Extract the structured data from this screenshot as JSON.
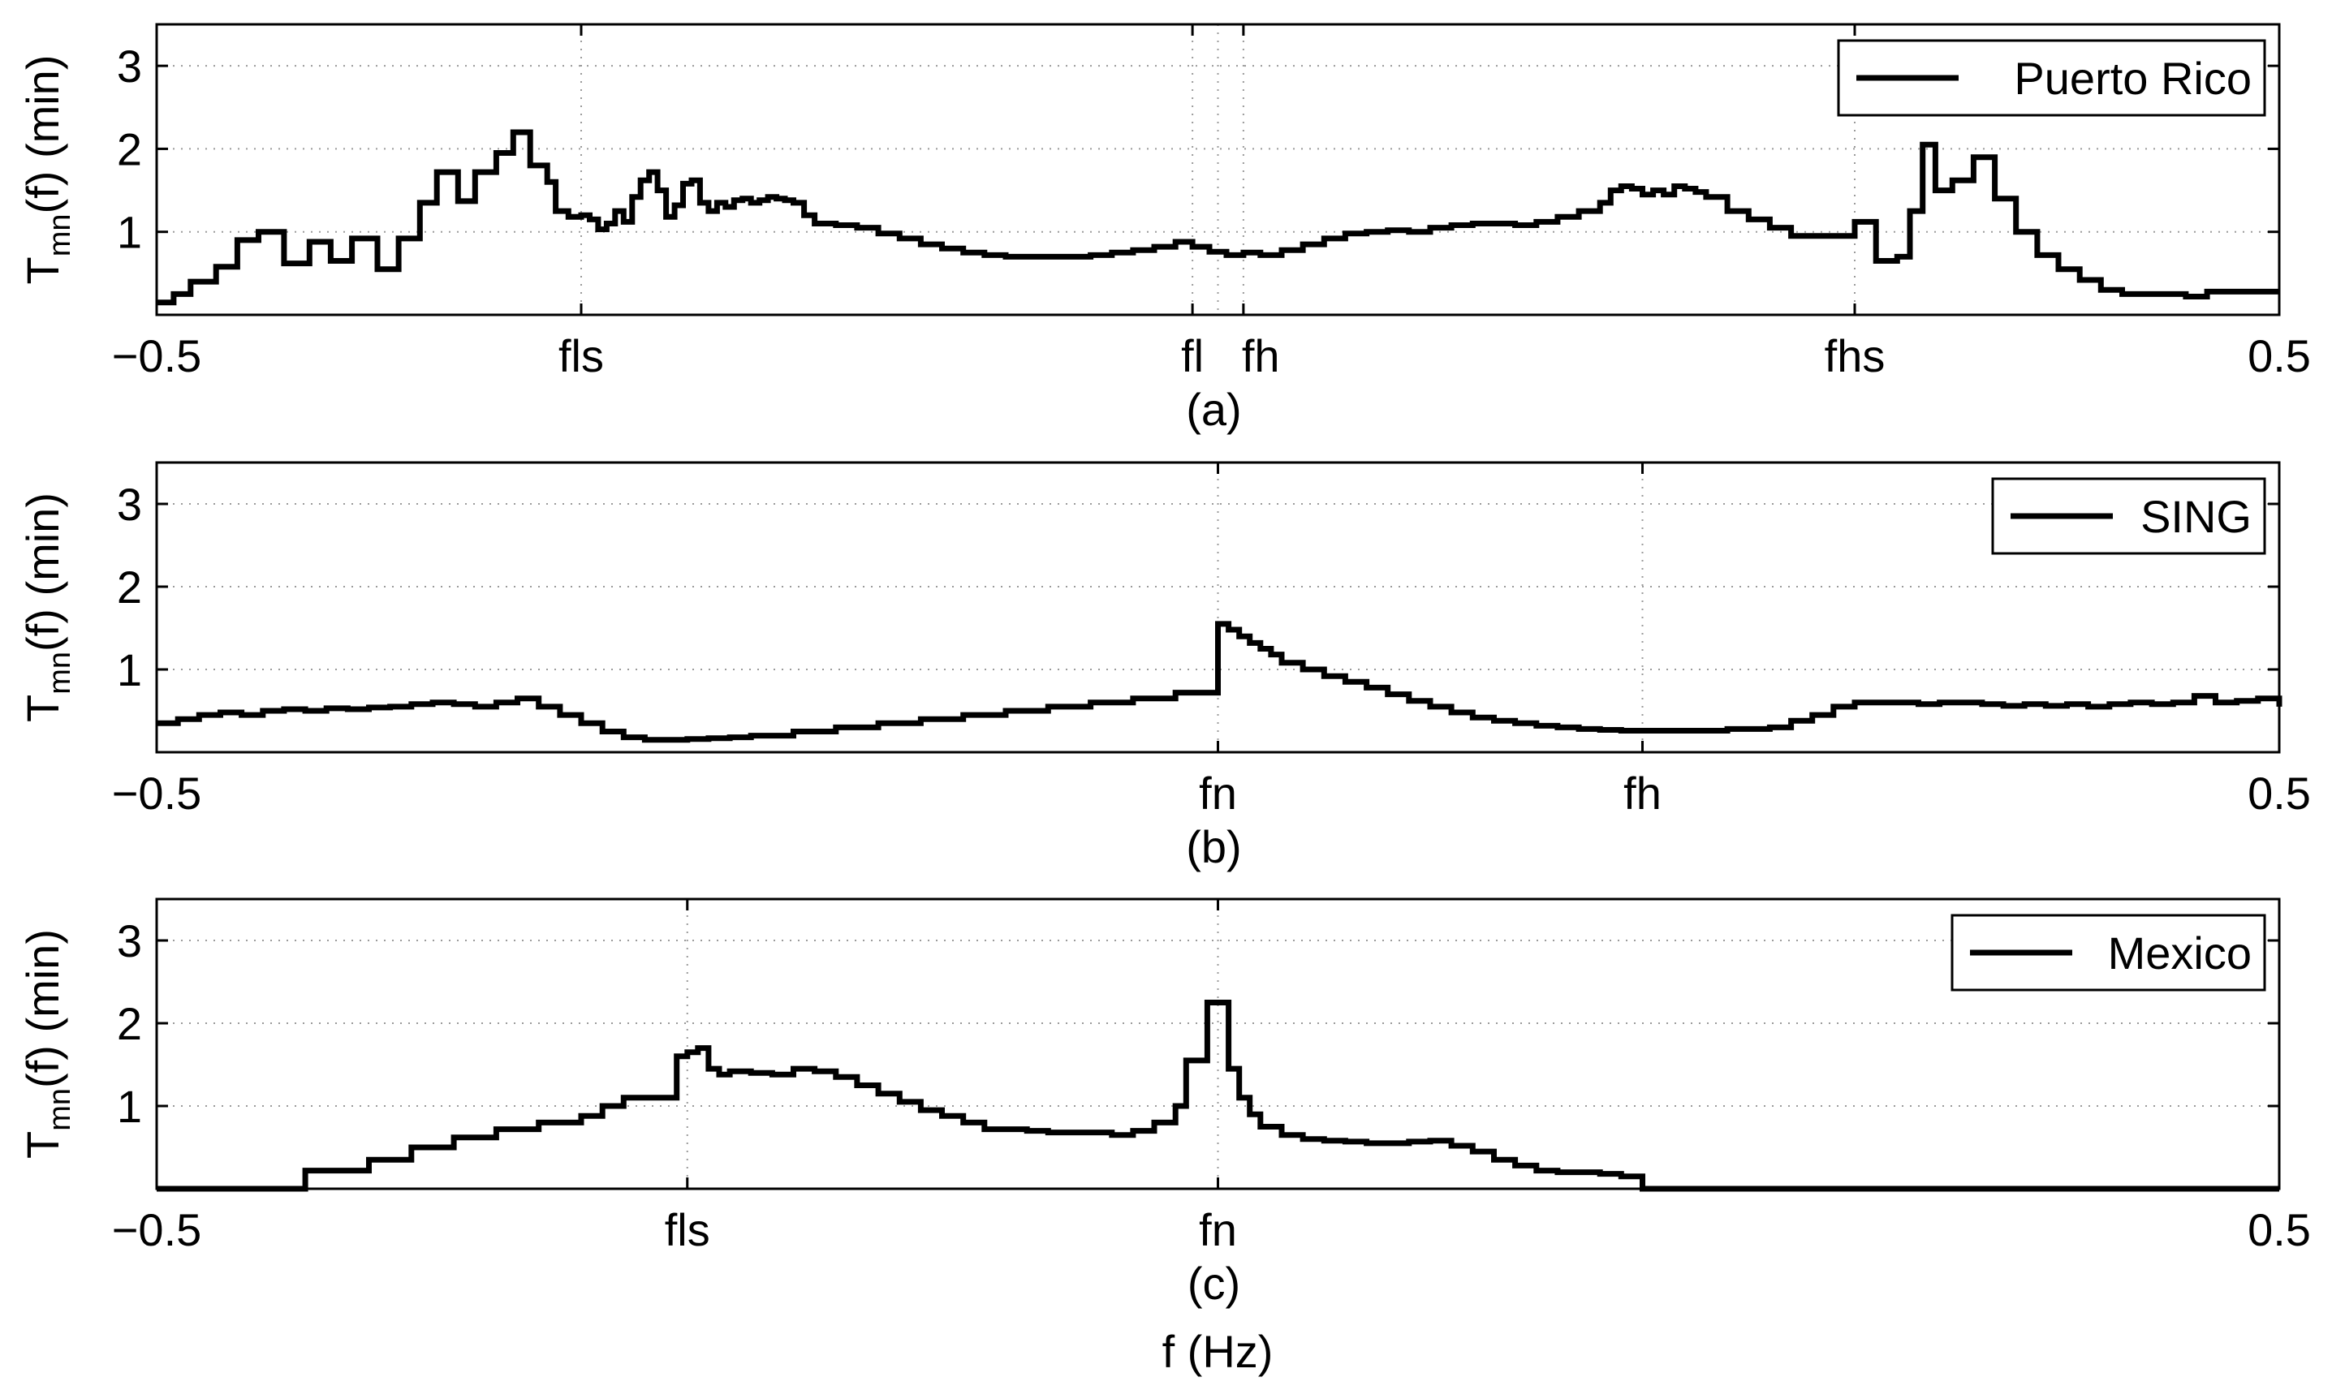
{
  "figure": {
    "xlabel": "f (Hz)"
  },
  "chart_data": [
    {
      "type": "line",
      "caption": "(a)",
      "ylabel_main": "T",
      "ylabel_sub": "mn",
      "ylabel_rest": "(f) (min)",
      "xlim": [
        -0.5,
        0.5
      ],
      "ylim": [
        0,
        3.5
      ],
      "yticks": [
        1,
        2,
        3
      ],
      "xticks": [
        {
          "value": -0.5,
          "label": "−0.5"
        },
        {
          "value": -0.3,
          "label": "fls"
        },
        {
          "value": -0.012,
          "label": "fl"
        },
        {
          "value": 0.012,
          "label": "fh"
        },
        {
          "value": 0.3,
          "label": "fhs"
        },
        {
          "value": 0.5,
          "label": "0.5"
        }
      ],
      "vgrid": [
        -0.3,
        -0.012,
        0.0,
        0.012,
        0.3
      ],
      "grid": true,
      "legend": {
        "position": "top-right",
        "labels": [
          "Puerto Rico"
        ]
      },
      "series": [
        {
          "name": "Puerto Rico",
          "step": true,
          "x": [
            -0.5,
            -0.492,
            -0.484,
            -0.472,
            -0.462,
            -0.452,
            -0.44,
            -0.428,
            -0.418,
            -0.408,
            -0.396,
            -0.386,
            -0.376,
            -0.368,
            -0.358,
            -0.35,
            -0.34,
            -0.332,
            -0.324,
            -0.316,
            -0.312,
            -0.306,
            -0.3,
            -0.296,
            -0.292,
            -0.288,
            -0.284,
            -0.28,
            -0.276,
            -0.272,
            -0.268,
            -0.264,
            -0.26,
            -0.256,
            -0.252,
            -0.248,
            -0.244,
            -0.24,
            -0.236,
            -0.232,
            -0.228,
            -0.224,
            -0.22,
            -0.216,
            -0.212,
            -0.208,
            -0.204,
            -0.2,
            -0.195,
            -0.19,
            -0.18,
            -0.17,
            -0.16,
            -0.15,
            -0.14,
            -0.13,
            -0.12,
            -0.11,
            -0.1,
            -0.09,
            -0.08,
            -0.07,
            -0.06,
            -0.05,
            -0.04,
            -0.03,
            -0.02,
            -0.012,
            -0.004,
            0.004,
            0.012,
            0.02,
            0.03,
            0.04,
            0.05,
            0.06,
            0.07,
            0.08,
            0.09,
            0.1,
            0.11,
            0.12,
            0.13,
            0.14,
            0.15,
            0.16,
            0.17,
            0.18,
            0.185,
            0.19,
            0.195,
            0.2,
            0.205,
            0.21,
            0.215,
            0.22,
            0.225,
            0.23,
            0.24,
            0.25,
            0.26,
            0.27,
            0.28,
            0.29,
            0.3,
            0.31,
            0.32,
            0.326,
            0.332,
            0.338,
            0.346,
            0.356,
            0.366,
            0.376,
            0.386,
            0.396,
            0.406,
            0.416,
            0.426,
            0.436,
            0.446,
            0.456,
            0.466,
            0.476,
            0.486,
            0.5
          ],
          "y": [
            0.15,
            0.25,
            0.4,
            0.58,
            0.9,
            1.0,
            0.62,
            0.88,
            0.65,
            0.92,
            0.55,
            0.92,
            1.35,
            1.72,
            1.37,
            1.72,
            1.95,
            2.2,
            1.8,
            1.6,
            1.25,
            1.18,
            1.2,
            1.15,
            1.03,
            1.1,
            1.25,
            1.12,
            1.42,
            1.62,
            1.72,
            1.5,
            1.18,
            1.32,
            1.58,
            1.62,
            1.35,
            1.25,
            1.35,
            1.3,
            1.38,
            1.4,
            1.35,
            1.38,
            1.42,
            1.4,
            1.38,
            1.35,
            1.2,
            1.1,
            1.08,
            1.05,
            0.98,
            0.92,
            0.85,
            0.8,
            0.75,
            0.72,
            0.7,
            0.7,
            0.7,
            0.7,
            0.72,
            0.75,
            0.78,
            0.82,
            0.88,
            0.82,
            0.76,
            0.72,
            0.75,
            0.72,
            0.78,
            0.85,
            0.92,
            0.98,
            1.0,
            1.02,
            1.0,
            1.05,
            1.08,
            1.1,
            1.1,
            1.08,
            1.12,
            1.18,
            1.25,
            1.35,
            1.5,
            1.55,
            1.52,
            1.45,
            1.5,
            1.45,
            1.55,
            1.52,
            1.48,
            1.42,
            1.25,
            1.15,
            1.05,
            0.95,
            0.95,
            0.95,
            1.12,
            0.65,
            0.7,
            1.25,
            2.05,
            1.5,
            1.62,
            1.9,
            1.4,
            1.0,
            0.72,
            0.55,
            0.42,
            0.3,
            0.25,
            0.25,
            0.25,
            0.22,
            0.28,
            0.28,
            0.28,
            0.28
          ]
        }
      ]
    },
    {
      "type": "line",
      "caption": "(b)",
      "ylabel_main": "T",
      "ylabel_sub": "mn",
      "ylabel_rest": "(f) (min)",
      "xlim": [
        -0.5,
        0.5
      ],
      "ylim": [
        0,
        3.5
      ],
      "yticks": [
        1,
        2,
        3
      ],
      "xticks": [
        {
          "value": -0.5,
          "label": "−0.5"
        },
        {
          "value": 0.0,
          "label": "fn"
        },
        {
          "value": 0.2,
          "label": "fh"
        },
        {
          "value": 0.5,
          "label": "0.5"
        }
      ],
      "vgrid": [
        0.0,
        0.2
      ],
      "grid": true,
      "legend": {
        "position": "top-right",
        "labels": [
          "SING"
        ]
      },
      "series": [
        {
          "name": "SING",
          "step": true,
          "x": [
            -0.5,
            -0.49,
            -0.48,
            -0.47,
            -0.46,
            -0.45,
            -0.44,
            -0.43,
            -0.42,
            -0.41,
            -0.4,
            -0.39,
            -0.38,
            -0.37,
            -0.36,
            -0.35,
            -0.34,
            -0.33,
            -0.32,
            -0.31,
            -0.3,
            -0.29,
            -0.28,
            -0.27,
            -0.26,
            -0.25,
            -0.24,
            -0.23,
            -0.22,
            -0.2,
            -0.18,
            -0.16,
            -0.14,
            -0.12,
            -0.1,
            -0.08,
            -0.06,
            -0.04,
            -0.02,
            0.0,
            0.005,
            0.01,
            0.015,
            0.02,
            0.025,
            0.03,
            0.04,
            0.05,
            0.06,
            0.07,
            0.08,
            0.09,
            0.1,
            0.11,
            0.12,
            0.13,
            0.14,
            0.15,
            0.16,
            0.17,
            0.18,
            0.19,
            0.2,
            0.22,
            0.24,
            0.26,
            0.27,
            0.28,
            0.29,
            0.3,
            0.31,
            0.32,
            0.33,
            0.34,
            0.35,
            0.36,
            0.37,
            0.38,
            0.39,
            0.4,
            0.41,
            0.42,
            0.43,
            0.44,
            0.45,
            0.46,
            0.47,
            0.48,
            0.49,
            0.5
          ],
          "y": [
            0.35,
            0.4,
            0.45,
            0.48,
            0.45,
            0.5,
            0.52,
            0.5,
            0.53,
            0.52,
            0.54,
            0.55,
            0.58,
            0.6,
            0.58,
            0.55,
            0.6,
            0.65,
            0.55,
            0.45,
            0.35,
            0.25,
            0.18,
            0.15,
            0.15,
            0.16,
            0.17,
            0.18,
            0.2,
            0.25,
            0.3,
            0.35,
            0.4,
            0.45,
            0.5,
            0.55,
            0.6,
            0.65,
            0.72,
            1.55,
            1.48,
            1.4,
            1.32,
            1.25,
            1.18,
            1.08,
            1.0,
            0.92,
            0.85,
            0.78,
            0.7,
            0.62,
            0.55,
            0.48,
            0.42,
            0.38,
            0.35,
            0.32,
            0.3,
            0.28,
            0.27,
            0.26,
            0.26,
            0.26,
            0.28,
            0.3,
            0.38,
            0.45,
            0.55,
            0.6,
            0.6,
            0.6,
            0.58,
            0.6,
            0.6,
            0.58,
            0.56,
            0.58,
            0.56,
            0.58,
            0.55,
            0.58,
            0.6,
            0.58,
            0.6,
            0.68,
            0.6,
            0.62,
            0.65,
            0.55
          ]
        }
      ]
    },
    {
      "type": "line",
      "caption": "(c)",
      "ylabel_main": "T",
      "ylabel_sub": "mn",
      "ylabel_rest": "(f) (min)",
      "xlim": [
        -0.5,
        0.5
      ],
      "ylim": [
        0,
        3.5
      ],
      "yticks": [
        1,
        2,
        3
      ],
      "xticks": [
        {
          "value": -0.5,
          "label": "−0.5"
        },
        {
          "value": -0.25,
          "label": "fls"
        },
        {
          "value": 0.0,
          "label": "fn"
        },
        {
          "value": 0.5,
          "label": "0.5"
        }
      ],
      "vgrid": [
        -0.25,
        0.0
      ],
      "grid": true,
      "legend": {
        "position": "top-right",
        "labels": [
          "Mexico"
        ]
      },
      "series": [
        {
          "name": "Mexico",
          "step": true,
          "x": [
            -0.5,
            -0.43,
            -0.4,
            -0.38,
            -0.36,
            -0.34,
            -0.32,
            -0.3,
            -0.29,
            -0.28,
            -0.27,
            -0.26,
            -0.255,
            -0.25,
            -0.245,
            -0.24,
            -0.235,
            -0.23,
            -0.22,
            -0.21,
            -0.2,
            -0.19,
            -0.18,
            -0.17,
            -0.16,
            -0.15,
            -0.14,
            -0.13,
            -0.12,
            -0.11,
            -0.1,
            -0.09,
            -0.08,
            -0.07,
            -0.06,
            -0.05,
            -0.04,
            -0.03,
            -0.02,
            -0.015,
            -0.01,
            -0.005,
            0.0,
            0.005,
            0.01,
            0.015,
            0.02,
            0.03,
            0.04,
            0.05,
            0.06,
            0.07,
            0.08,
            0.09,
            0.1,
            0.11,
            0.12,
            0.13,
            0.14,
            0.15,
            0.16,
            0.17,
            0.18,
            0.19,
            0.2,
            0.5
          ],
          "y": [
            0.0,
            0.22,
            0.35,
            0.5,
            0.62,
            0.72,
            0.8,
            0.88,
            1.0,
            1.1,
            1.1,
            1.1,
            1.6,
            1.65,
            1.7,
            1.45,
            1.38,
            1.42,
            1.4,
            1.38,
            1.45,
            1.42,
            1.35,
            1.25,
            1.15,
            1.05,
            0.95,
            0.88,
            0.8,
            0.72,
            0.72,
            0.7,
            0.68,
            0.68,
            0.68,
            0.65,
            0.7,
            0.8,
            1.0,
            1.55,
            1.55,
            2.25,
            2.25,
            1.45,
            1.1,
            0.9,
            0.75,
            0.65,
            0.6,
            0.58,
            0.57,
            0.55,
            0.55,
            0.57,
            0.58,
            0.52,
            0.45,
            0.35,
            0.28,
            0.22,
            0.2,
            0.2,
            0.18,
            0.15,
            0.0,
            0.0
          ]
        }
      ]
    }
  ]
}
